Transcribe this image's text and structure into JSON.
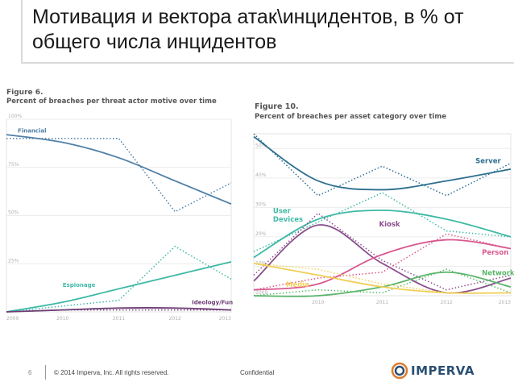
{
  "slide": {
    "title": "Мотивация и вектора атак\\инцидентов, в % от общего числа инцидентов"
  },
  "footer": {
    "page_number": "6",
    "copyright": "© 2014 Imperva, Inc. All rights reserved.",
    "confidential": "Confidential",
    "logo_text": "IMPERVA"
  },
  "colors": {
    "financial": "#4f7fa6",
    "espionage": "#3fb9a6",
    "ideology": "#6d3c74",
    "server": "#2d6f8f",
    "user_devices": "#3fb9a6",
    "kiosk": "#8a4f8e",
    "person": "#d9588f",
    "network": "#5ab56a",
    "media": "#f0cf56"
  },
  "chart_data": [
    {
      "type": "line",
      "figure_label": "Figure 6.",
      "title": "Percent of breaches per threat actor motive over time",
      "x": [
        2009,
        2010,
        2011,
        2012,
        2013
      ],
      "xlim": [
        2009,
        2013
      ],
      "ylim": [
        0,
        100
      ],
      "ytick_labels": [
        "100%",
        "75%",
        "50%",
        "25%"
      ],
      "ytick_values": [
        100,
        75,
        50,
        25
      ],
      "xtick_labels": [
        "2009",
        "2010",
        "2011",
        "2012",
        "2013"
      ],
      "series": [
        {
          "name": "Financial",
          "color_key": "financial",
          "trend": [
            92,
            88,
            80,
            68,
            56
          ],
          "actual": [
            90,
            90,
            90,
            52,
            67
          ],
          "label_x": 2009.2,
          "label_y": 93
        },
        {
          "name": "Espionage",
          "color_key": "espionage",
          "trend": [
            0,
            5,
            12,
            19,
            26
          ],
          "actual": [
            0,
            3,
            6,
            34,
            17
          ],
          "label_x": 2010.0,
          "label_y": 13
        },
        {
          "name": "Ideology/Fun",
          "color_key": "ideology",
          "trend": [
            0,
            1,
            2,
            2,
            1
          ],
          "actual": [
            0,
            1,
            1,
            1,
            1
          ],
          "label_x": 2012.3,
          "label_y": 4
        }
      ]
    },
    {
      "type": "line",
      "figure_label": "Figure 10.",
      "title": "Percent of breaches per asset category over time",
      "x": [
        2009,
        2010,
        2011,
        2012,
        2013
      ],
      "xlim": [
        2009,
        2013
      ],
      "ylim": [
        0,
        55
      ],
      "ytick_labels": [
        "50%",
        "40%",
        "30%",
        "20%",
        "10%",
        "2009"
      ],
      "ytick_values": [
        50,
        40,
        30,
        20,
        10,
        0
      ],
      "xtick_labels": [
        "2010",
        "2011",
        "2012",
        "2013"
      ],
      "xtick_values": [
        2010,
        2011,
        2012,
        2013
      ],
      "series": [
        {
          "name": "Server",
          "color_key": "server",
          "trend": [
            54,
            39,
            36,
            39,
            43
          ],
          "actual": [
            55,
            34,
            44,
            34,
            45
          ],
          "label_x": 2012.45,
          "label_y": 45
        },
        {
          "name": "User Devices",
          "color_key": "user_devices",
          "trend": [
            13,
            26,
            29,
            26,
            20
          ],
          "actual": [
            15,
            25,
            35,
            22,
            20
          ],
          "label_x": 2009.3,
          "label_y": 28
        },
        {
          "name": "Kiosk",
          "color_key": "kiosk",
          "trend": [
            5,
            24,
            11,
            1,
            6
          ],
          "actual": [
            7,
            28,
            12,
            2,
            7
          ],
          "label_x": 2010.95,
          "label_y": 23.5
        },
        {
          "name": "Person",
          "color_key": "person",
          "trend": [
            2,
            4,
            14,
            19,
            16
          ],
          "actual": [
            2,
            6,
            8,
            21,
            16
          ],
          "label_x": 2012.55,
          "label_y": 14
        },
        {
          "name": "Network",
          "color_key": "network",
          "trend": [
            0,
            0,
            3,
            8,
            3
          ],
          "actual": [
            0,
            2,
            1,
            9,
            1
          ],
          "label_x": 2012.55,
          "label_y": 7
        },
        {
          "name": "Media",
          "color_key": "media",
          "trend": [
            11,
            7,
            3,
            1,
            1
          ],
          "actual": [
            11,
            9,
            4,
            1,
            1
          ],
          "label_x": 2009.5,
          "label_y": 3
        }
      ],
      "label_lines": {
        "User Devices": [
          "User",
          "Devices"
        ]
      }
    }
  ]
}
